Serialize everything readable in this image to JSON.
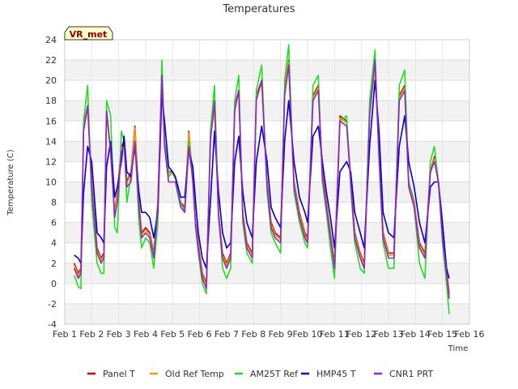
{
  "chart_data": {
    "type": "line",
    "title": "Temperatures",
    "xlabel": "Time",
    "ylabel": "Temperature (C)",
    "badge": "VR_met",
    "ylim": [
      -4,
      24
    ],
    "xlim": [
      1,
      16
    ],
    "y_ticks": [
      -4,
      -2,
      0,
      2,
      4,
      6,
      8,
      10,
      12,
      14,
      16,
      18,
      20,
      22,
      24
    ],
    "x_ticks": [
      {
        "v": 1,
        "label": "Feb 1"
      },
      {
        "v": 2,
        "label": "Feb 2"
      },
      {
        "v": 3,
        "label": "Feb 3"
      },
      {
        "v": 4,
        "label": "Feb 4"
      },
      {
        "v": 5,
        "label": "Feb 5"
      },
      {
        "v": 6,
        "label": "Feb 6"
      },
      {
        "v": 7,
        "label": "Feb 7"
      },
      {
        "v": 8,
        "label": "Feb 8"
      },
      {
        "v": 9,
        "label": "Feb 9"
      },
      {
        "v": 10,
        "label": "Feb 10"
      },
      {
        "v": 11,
        "label": "Feb 11"
      },
      {
        "v": 12,
        "label": "Feb 12"
      },
      {
        "v": 13,
        "label": "Feb 13"
      },
      {
        "v": 14,
        "label": "Feb 14"
      },
      {
        "v": 15,
        "label": "Feb 15"
      },
      {
        "v": 16,
        "label": "Feb 16"
      }
    ],
    "series": [
      {
        "name": "Panel T",
        "color": "#cc0000",
        "x": [
          1.35,
          1.5,
          1.6,
          1.7,
          1.85,
          2.0,
          2.2,
          2.35,
          2.45,
          2.55,
          2.7,
          2.85,
          2.95,
          3.1,
          3.2,
          3.3,
          3.45,
          3.6,
          3.75,
          3.85,
          4.0,
          4.15,
          4.3,
          4.45,
          4.6,
          4.7,
          4.85,
          5.0,
          5.1,
          5.3,
          5.45,
          5.6,
          5.75,
          5.85,
          5.95,
          6.1,
          6.25,
          6.4,
          6.55,
          6.7,
          6.85,
          7.0,
          7.15,
          7.3,
          7.45,
          7.6,
          7.75,
          7.95,
          8.1,
          8.3,
          8.5,
          8.65,
          8.8,
          9.0,
          9.15,
          9.3,
          9.5,
          9.7,
          9.9,
          10.0,
          10.2,
          10.4,
          10.55,
          10.7,
          10.85,
          11.0,
          11.2,
          11.45,
          11.6,
          11.75,
          11.95,
          12.1,
          12.3,
          12.5,
          12.65,
          12.8,
          13.0,
          13.2,
          13.4,
          13.6,
          13.75,
          13.95,
          14.15,
          14.35,
          14.55,
          14.7,
          14.85,
          15.0,
          15.15,
          15.25
        ],
        "y": [
          2.0,
          1.0,
          1.5,
          15.5,
          17.5,
          10.0,
          3.5,
          2.5,
          3.0,
          17.0,
          13.0,
          7.0,
          9.0,
          13.5,
          14.0,
          10.0,
          11.0,
          15.5,
          8.0,
          5.0,
          5.5,
          5.0,
          3.0,
          8.0,
          20.5,
          14.0,
          11.0,
          11.0,
          10.5,
          8.0,
          7.5,
          15.0,
          10.0,
          6.0,
          4.0,
          1.0,
          0.0,
          14.5,
          17.5,
          7.0,
          3.0,
          2.0,
          3.0,
          17.5,
          19.0,
          7.0,
          4.0,
          3.0,
          18.5,
          20.0,
          10.0,
          6.0,
          5.0,
          4.5,
          19.0,
          22.0,
          10.0,
          7.0,
          5.0,
          4.5,
          18.5,
          19.5,
          11.0,
          8.0,
          5.0,
          2.0,
          16.5,
          16.0,
          10.5,
          5.0,
          3.0,
          2.0,
          17.0,
          21.5,
          13.0,
          5.0,
          3.0,
          3.0,
          18.5,
          19.5,
          10.0,
          8.0,
          4.0,
          3.0,
          11.0,
          12.5,
          10.0,
          5.0,
          1.5,
          -1.0
        ]
      },
      {
        "name": "Old Ref Temp",
        "color": "#e8a000",
        "x": [
          1.35,
          1.5,
          1.6,
          1.7,
          1.85,
          2.0,
          2.2,
          2.35,
          2.45,
          2.55,
          2.7,
          2.85,
          2.95,
          3.1,
          3.2,
          3.3,
          3.45,
          3.6,
          3.75,
          3.85,
          4.0,
          4.15,
          4.3,
          4.45,
          4.6,
          4.7,
          4.85,
          5.0,
          5.1,
          5.3,
          5.45,
          5.6,
          5.75,
          5.85,
          5.95,
          6.1,
          6.25,
          6.4,
          6.55,
          6.7,
          6.85,
          7.0,
          7.15,
          7.3,
          7.45,
          7.6,
          7.75,
          7.95,
          8.1,
          8.3,
          8.5,
          8.65,
          8.8,
          9.0,
          9.15,
          9.3,
          9.5,
          9.7,
          9.9,
          10.0,
          10.2,
          10.4,
          10.55,
          10.7,
          10.85,
          11.0,
          11.2,
          11.45,
          11.6,
          11.75,
          11.95,
          12.1,
          12.3,
          12.5,
          12.65,
          12.8,
          13.0,
          13.2,
          13.4,
          13.6,
          13.75,
          13.95,
          14.15,
          14.35,
          14.55,
          14.7,
          14.85,
          15.0,
          15.15,
          15.25
        ],
        "y": [
          1.8,
          0.8,
          1.3,
          15.3,
          17.3,
          9.8,
          3.3,
          2.3,
          2.8,
          16.8,
          12.8,
          6.8,
          8.8,
          13.3,
          13.8,
          9.8,
          10.8,
          15.3,
          7.8,
          4.8,
          5.3,
          4.8,
          2.8,
          7.8,
          20.3,
          13.8,
          10.8,
          10.8,
          10.3,
          7.8,
          7.3,
          14.8,
          9.8,
          5.8,
          3.8,
          0.8,
          -0.2,
          14.3,
          17.3,
          6.8,
          2.8,
          1.8,
          2.8,
          17.3,
          18.8,
          6.8,
          3.8,
          2.8,
          18.3,
          19.8,
          9.8,
          5.8,
          4.8,
          4.3,
          18.8,
          21.8,
          9.8,
          6.8,
          4.8,
          4.3,
          18.3,
          19.3,
          10.8,
          7.8,
          4.8,
          1.8,
          16.3,
          15.8,
          10.3,
          4.8,
          2.8,
          1.8,
          16.8,
          21.3,
          12.8,
          4.8,
          2.8,
          2.8,
          18.3,
          19.3,
          9.8,
          7.8,
          3.8,
          2.8,
          10.8,
          12.3,
          9.8,
          4.8,
          1.3,
          -1.2
        ]
      },
      {
        "name": "AM25T Ref",
        "color": "#22dd22",
        "x": [
          1.35,
          1.5,
          1.6,
          1.7,
          1.85,
          2.0,
          2.2,
          2.35,
          2.45,
          2.55,
          2.7,
          2.85,
          2.95,
          3.1,
          3.2,
          3.3,
          3.45,
          3.6,
          3.75,
          3.85,
          4.0,
          4.15,
          4.3,
          4.45,
          4.6,
          4.7,
          4.85,
          5.0,
          5.1,
          5.3,
          5.45,
          5.6,
          5.75,
          5.85,
          5.95,
          6.1,
          6.25,
          6.4,
          6.55,
          6.7,
          6.85,
          7.0,
          7.15,
          7.3,
          7.45,
          7.6,
          7.75,
          7.95,
          8.1,
          8.3,
          8.5,
          8.65,
          8.8,
          9.0,
          9.15,
          9.3,
          9.5,
          9.7,
          9.9,
          10.0,
          10.2,
          10.4,
          10.55,
          10.7,
          10.85,
          11.0,
          11.2,
          11.45,
          11.6,
          11.75,
          11.95,
          12.1,
          12.3,
          12.5,
          12.65,
          12.8,
          13.0,
          13.2,
          13.4,
          13.6,
          13.75,
          13.95,
          14.15,
          14.35,
          14.55,
          14.7,
          14.85,
          15.0,
          15.15,
          15.25
        ],
        "y": [
          0.8,
          -0.3,
          -0.5,
          16.0,
          19.5,
          8.0,
          2.0,
          1.0,
          1.0,
          18.0,
          16.5,
          5.5,
          5.0,
          15.0,
          14.0,
          8.0,
          10.5,
          14.0,
          6.0,
          3.5,
          4.5,
          4.0,
          1.5,
          6.0,
          22.0,
          14.0,
          10.5,
          11.0,
          10.5,
          8.0,
          7.0,
          14.0,
          11.0,
          5.5,
          3.0,
          0.0,
          -1.0,
          15.0,
          19.5,
          7.0,
          1.5,
          0.5,
          1.5,
          18.0,
          20.5,
          6.0,
          3.0,
          2.0,
          19.0,
          21.5,
          9.0,
          5.0,
          4.0,
          3.0,
          20.0,
          23.5,
          9.0,
          6.0,
          4.0,
          3.5,
          19.5,
          20.5,
          10.0,
          7.0,
          3.5,
          0.5,
          16.0,
          16.5,
          9.5,
          4.0,
          1.5,
          1.0,
          18.0,
          23.0,
          12.0,
          4.0,
          1.5,
          1.5,
          19.5,
          21.0,
          10.0,
          7.5,
          2.0,
          0.5,
          12.0,
          13.5,
          10.0,
          4.0,
          0.0,
          -3.0
        ]
      },
      {
        "name": "HMP45 T",
        "color": "#0000cc",
        "x": [
          1.35,
          1.5,
          1.6,
          1.7,
          1.85,
          2.0,
          2.2,
          2.35,
          2.45,
          2.55,
          2.7,
          2.85,
          2.95,
          3.1,
          3.2,
          3.3,
          3.45,
          3.6,
          3.75,
          3.85,
          4.0,
          4.15,
          4.3,
          4.45,
          4.6,
          4.7,
          4.85,
          5.0,
          5.1,
          5.3,
          5.45,
          5.6,
          5.75,
          5.85,
          5.95,
          6.1,
          6.25,
          6.4,
          6.55,
          6.7,
          6.85,
          7.0,
          7.15,
          7.3,
          7.45,
          7.6,
          7.75,
          7.95,
          8.1,
          8.3,
          8.5,
          8.65,
          8.8,
          9.0,
          9.15,
          9.3,
          9.5,
          9.7,
          9.9,
          10.0,
          10.2,
          10.4,
          10.55,
          10.7,
          10.85,
          11.0,
          11.2,
          11.45,
          11.6,
          11.75,
          11.95,
          12.1,
          12.3,
          12.5,
          12.65,
          12.8,
          13.0,
          13.2,
          13.4,
          13.6,
          13.75,
          13.95,
          14.15,
          14.35,
          14.55,
          14.7,
          14.85,
          15.0,
          15.15,
          15.25
        ],
        "y": [
          2.8,
          2.5,
          2.0,
          9.0,
          13.5,
          12.0,
          5.0,
          4.5,
          4.0,
          11.5,
          14.0,
          8.5,
          9.5,
          12.0,
          14.5,
          11.0,
          10.5,
          13.5,
          9.0,
          7.0,
          7.0,
          6.5,
          4.5,
          7.0,
          18.5,
          16.0,
          11.5,
          11.0,
          10.5,
          8.5,
          8.5,
          13.0,
          11.5,
          8.0,
          5.0,
          2.5,
          1.5,
          8.0,
          15.0,
          9.0,
          5.0,
          3.5,
          4.0,
          12.0,
          14.5,
          9.0,
          6.0,
          4.5,
          12.0,
          15.5,
          12.0,
          7.5,
          6.5,
          5.5,
          14.0,
          18.0,
          12.0,
          8.5,
          7.0,
          6.0,
          14.5,
          15.5,
          12.0,
          9.0,
          6.5,
          3.5,
          11.0,
          12.0,
          11.0,
          7.0,
          5.0,
          3.5,
          13.5,
          20.0,
          15.0,
          7.0,
          5.0,
          4.5,
          13.5,
          16.5,
          12.0,
          9.5,
          6.0,
          4.0,
          9.5,
          10.0,
          10.0,
          6.0,
          1.5,
          0.5
        ]
      },
      {
        "name": "CNR1 PRT",
        "color": "#9922cc",
        "x": [
          1.35,
          1.5,
          1.6,
          1.7,
          1.85,
          2.0,
          2.2,
          2.35,
          2.45,
          2.55,
          2.7,
          2.85,
          2.95,
          3.1,
          3.2,
          3.3,
          3.45,
          3.6,
          3.75,
          3.85,
          4.0,
          4.15,
          4.3,
          4.45,
          4.6,
          4.7,
          4.85,
          5.0,
          5.1,
          5.3,
          5.45,
          5.6,
          5.75,
          5.85,
          5.95,
          6.1,
          6.25,
          6.4,
          6.55,
          6.7,
          6.85,
          7.0,
          7.15,
          7.3,
          7.45,
          7.6,
          7.75,
          7.95,
          8.1,
          8.3,
          8.5,
          8.65,
          8.8,
          9.0,
          9.15,
          9.3,
          9.5,
          9.7,
          9.9,
          10.0,
          10.2,
          10.4,
          10.55,
          10.7,
          10.85,
          11.0,
          11.2,
          11.45,
          11.6,
          11.75,
          11.95,
          12.1,
          12.3,
          12.5,
          12.65,
          12.8,
          13.0,
          13.2,
          13.4,
          13.6,
          13.75,
          13.95,
          14.15,
          14.35,
          14.55,
          14.7,
          14.85,
          15.0,
          15.15,
          15.25
        ],
        "y": [
          1.5,
          0.5,
          1.0,
          15.0,
          17.5,
          9.5,
          3.0,
          2.0,
          2.5,
          17.0,
          13.0,
          6.5,
          8.0,
          13.0,
          13.5,
          9.5,
          10.0,
          14.0,
          7.5,
          4.5,
          5.0,
          4.5,
          2.5,
          7.5,
          20.5,
          13.5,
          10.0,
          10.0,
          10.0,
          7.5,
          7.0,
          13.5,
          10.0,
          5.5,
          3.5,
          0.5,
          -0.5,
          14.0,
          18.0,
          6.5,
          2.5,
          1.5,
          2.5,
          17.0,
          19.0,
          6.5,
          3.5,
          2.5,
          18.0,
          20.0,
          9.5,
          5.5,
          4.5,
          4.0,
          18.5,
          21.5,
          9.5,
          6.5,
          4.5,
          4.0,
          18.0,
          19.0,
          10.5,
          7.5,
          4.5,
          1.5,
          16.0,
          15.5,
          10.0,
          4.5,
          2.5,
          1.5,
          16.5,
          22.0,
          12.5,
          4.5,
          2.5,
          2.5,
          18.0,
          19.0,
          9.5,
          7.5,
          3.5,
          2.5,
          11.0,
          12.0,
          10.0,
          4.5,
          1.0,
          -1.5
        ]
      }
    ]
  }
}
